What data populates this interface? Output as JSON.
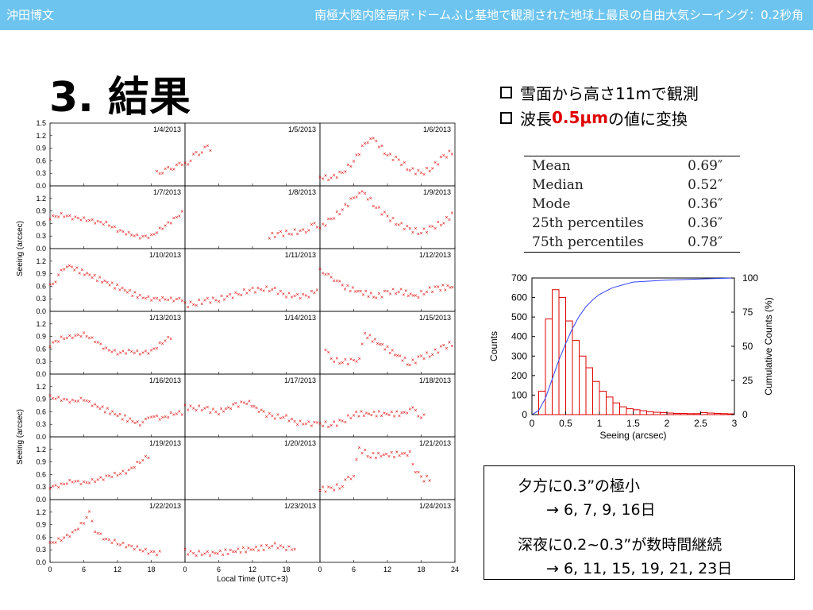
{
  "header": {
    "author": "沖田博文",
    "title": "南極大陸内陸高原･ドームふじ基地で観測された地球上最良の自由大気シーイング：0.2秒角"
  },
  "slide_title": "3. 結果",
  "bullets": [
    {
      "pre": "雪面から高さ11mで観測",
      "red": "",
      "post": ""
    },
    {
      "pre": "波長",
      "red": "0.5μm",
      "post": "の値に変換"
    }
  ],
  "stats": [
    {
      "label": "Mean",
      "value": "0.69″"
    },
    {
      "label": "Median",
      "value": "0.52″"
    },
    {
      "label": "Mode",
      "value": "0.36″"
    },
    {
      "label": "25th percentiles",
      "value": "0.36″"
    },
    {
      "label": "75th percentiles",
      "value": "0.78″"
    }
  ],
  "notes": [
    "夕方に0.3”の極小",
    "→ 6, 7, 9, 16日",
    "深夜に0.2~0.3”が数時間継続",
    "→ 6, 11, 15, 19, 21, 23日"
  ],
  "colors": {
    "header": "#6cc4ef",
    "points": "#e00000",
    "hist": "#e00000",
    "cum": "#3344ff"
  },
  "chart_data": [
    {
      "type": "scatter",
      "panels": [
        "1/4/2013",
        "1/5/2013",
        "1/6/2013",
        "1/7/2013",
        "1/8/2013",
        "1/9/2013",
        "1/10/2013",
        "1/11/2013",
        "1/12/2013",
        "1/13/2013",
        "1/14/2013",
        "1/15/2013",
        "1/16/2013",
        "1/17/2013",
        "1/18/2013",
        "1/19/2013",
        "1/20/2013",
        "1/21/2013",
        "1/22/2013",
        "1/23/2013",
        "1/24/2013"
      ],
      "xlabel": "Local Time (UTC+3)",
      "ylabel": "Seeing (arcsec)",
      "xticks": [
        "0",
        "6",
        "12",
        "18",
        "24"
      ],
      "yticks_first_row": [
        "0.0",
        "0.3",
        "0.6",
        "0.9",
        "1.2",
        "1.5"
      ],
      "yticks_other_rows": [
        "0.0",
        "0.3",
        "0.6",
        "0.9",
        "1.2"
      ],
      "ylim": [
        0,
        1.5
      ],
      "xlim": [
        0,
        24
      ],
      "daily_series": [
        [
          [
            19,
            0.3
          ],
          [
            20,
            0.35
          ],
          [
            21,
            0.4
          ],
          [
            22,
            0.45
          ],
          [
            23,
            0.5
          ],
          [
            24,
            0.55
          ]
        ],
        [
          [
            0,
            0.5
          ],
          [
            1,
            0.65
          ],
          [
            2,
            0.75
          ],
          [
            3,
            0.85
          ],
          [
            4,
            0.9
          ],
          [
            5,
            0.9
          ]
        ],
        [
          [
            0,
            0.2
          ],
          [
            2,
            0.2
          ],
          [
            4,
            0.3
          ],
          [
            6,
            0.6
          ],
          [
            8,
            1.0
          ],
          [
            9,
            1.15
          ],
          [
            10,
            1.05
          ],
          [
            12,
            0.75
          ],
          [
            14,
            0.6
          ],
          [
            16,
            0.4
          ],
          [
            18,
            0.28
          ],
          [
            20,
            0.45
          ],
          [
            22,
            0.7
          ],
          [
            24,
            0.85
          ]
        ],
        [
          [
            0,
            0.75
          ],
          [
            2,
            0.8
          ],
          [
            4,
            0.75
          ],
          [
            6,
            0.7
          ],
          [
            8,
            0.65
          ],
          [
            10,
            0.6
          ],
          [
            12,
            0.45
          ],
          [
            14,
            0.35
          ],
          [
            16,
            0.28
          ],
          [
            18,
            0.3
          ],
          [
            20,
            0.5
          ],
          [
            22,
            0.7
          ],
          [
            24,
            0.9
          ]
        ],
        [
          [
            15,
            0.3
          ],
          [
            17,
            0.35
          ],
          [
            19,
            0.4
          ],
          [
            21,
            0.4
          ],
          [
            22,
            0.5
          ],
          [
            23,
            0.55
          ],
          [
            24,
            0.6
          ]
        ],
        [
          [
            0,
            0.5
          ],
          [
            2,
            0.7
          ],
          [
            4,
            0.95
          ],
          [
            6,
            1.2
          ],
          [
            7,
            1.35
          ],
          [
            8,
            1.3
          ],
          [
            10,
            1.0
          ],
          [
            12,
            0.75
          ],
          [
            14,
            0.6
          ],
          [
            16,
            0.45
          ],
          [
            18,
            0.4
          ],
          [
            20,
            0.5
          ],
          [
            22,
            0.65
          ],
          [
            24,
            0.85
          ]
        ],
        [
          [
            0,
            0.6
          ],
          [
            1,
            0.75
          ],
          [
            2,
            0.95
          ],
          [
            3,
            1.1
          ],
          [
            16,
            0.35
          ],
          [
            18,
            0.3
          ],
          [
            20,
            0.3
          ],
          [
            22,
            0.28
          ],
          [
            24,
            0.3
          ]
        ],
        [
          [
            0,
            0.15
          ],
          [
            2,
            0.2
          ],
          [
            4,
            0.25
          ],
          [
            6,
            0.3
          ],
          [
            8,
            0.35
          ],
          [
            10,
            0.45
          ],
          [
            12,
            0.5
          ],
          [
            14,
            0.55
          ],
          [
            16,
            0.5
          ],
          [
            18,
            0.4
          ],
          [
            20,
            0.35
          ],
          [
            22,
            0.4
          ],
          [
            24,
            0.55
          ]
        ],
        [
          [
            0,
            1.0
          ],
          [
            1,
            0.9
          ],
          [
            2,
            0.8
          ],
          [
            3,
            0.75
          ],
          [
            4,
            0.6
          ],
          [
            10,
            0.35
          ],
          [
            12,
            0.45
          ],
          [
            14,
            0.5
          ],
          [
            17,
            0.35
          ],
          [
            19,
            0.5
          ],
          [
            21,
            0.55
          ],
          [
            24,
            0.6
          ]
        ],
        [
          [
            0,
            0.7
          ],
          [
            2,
            0.85
          ],
          [
            4,
            0.9
          ],
          [
            6,
            0.95
          ],
          [
            8,
            0.8
          ],
          [
            10,
            0.6
          ],
          [
            12,
            0.5
          ],
          [
            14,
            0.55
          ],
          [
            16,
            0.5
          ],
          [
            18,
            0.55
          ],
          [
            20,
            0.75
          ],
          [
            22,
            0.95
          ]
        ],
        [],
        [
          [
            1,
            0.6
          ],
          [
            2,
            0.35
          ],
          [
            4,
            0.3
          ],
          [
            6,
            0.3
          ],
          [
            7,
            0.4
          ],
          [
            8,
            0.95
          ],
          [
            16,
            0.25
          ],
          [
            18,
            0.4
          ],
          [
            20,
            0.5
          ],
          [
            22,
            0.65
          ],
          [
            24,
            0.75
          ]
        ],
        [
          [
            0,
            0.95
          ],
          [
            2,
            0.9
          ],
          [
            4,
            0.85
          ],
          [
            6,
            0.9
          ],
          [
            8,
            0.75
          ],
          [
            16,
            0.3
          ],
          [
            17,
            0.4
          ],
          [
            18,
            0.5
          ],
          [
            20,
            0.45
          ],
          [
            22,
            0.55
          ],
          [
            24,
            0.6
          ]
        ],
        [
          [
            0,
            0.7
          ],
          [
            2,
            0.7
          ],
          [
            4,
            0.65
          ],
          [
            6,
            0.6
          ],
          [
            9,
            0.75
          ],
          [
            11,
            0.85
          ],
          [
            14,
            0.55
          ],
          [
            16,
            0.5
          ],
          [
            18,
            0.45
          ],
          [
            20,
            0.35
          ],
          [
            22,
            0.3
          ],
          [
            24,
            0.35
          ]
        ],
        [
          [
            0,
            0.3
          ],
          [
            2,
            0.3
          ],
          [
            4,
            0.35
          ],
          [
            6,
            0.55
          ],
          [
            15,
            0.55
          ],
          [
            16,
            0.7
          ],
          [
            17,
            0.6
          ],
          [
            18,
            0.5
          ],
          [
            19,
            0.45
          ]
        ],
        [
          [
            0,
            0.3
          ],
          [
            2,
            0.35
          ],
          [
            4,
            0.45
          ],
          [
            6,
            0.4
          ],
          [
            8,
            0.45
          ],
          [
            10,
            0.55
          ],
          [
            12,
            0.6
          ],
          [
            14,
            0.7
          ],
          [
            16,
            0.9
          ],
          [
            18,
            1.1
          ]
        ],
        [],
        [
          [
            0,
            0.25
          ],
          [
            2,
            0.25
          ],
          [
            4,
            0.35
          ],
          [
            5,
            0.5
          ],
          [
            6,
            0.6
          ],
          [
            7,
            1.2
          ],
          [
            9,
            1.05
          ],
          [
            16,
            1.1
          ],
          [
            17,
            0.7
          ],
          [
            18,
            0.5
          ],
          [
            20,
            0.5
          ]
        ],
        [
          [
            0,
            0.45
          ],
          [
            2,
            0.55
          ],
          [
            4,
            0.7
          ],
          [
            6,
            0.95
          ],
          [
            7,
            1.2
          ],
          [
            8,
            0.75
          ],
          [
            10,
            0.55
          ],
          [
            12,
            0.45
          ],
          [
            14,
            0.4
          ],
          [
            16,
            0.3
          ],
          [
            18,
            0.25
          ],
          [
            20,
            0.2
          ]
        ],
        [
          [
            0,
            0.25
          ],
          [
            2,
            0.22
          ],
          [
            4,
            0.2
          ],
          [
            14,
            0.35
          ],
          [
            16,
            0.4
          ],
          [
            18,
            0.35
          ],
          [
            20,
            0.3
          ]
        ],
        []
      ]
    },
    {
      "type": "bar",
      "xlabel": "Seeing (arcsec)",
      "ylabel": "Counts",
      "y2label": "Cumulative Counts (%)",
      "xlim": [
        0,
        3
      ],
      "ylim": [
        0,
        700
      ],
      "y2lim": [
        0,
        100
      ],
      "xticks": [
        "0",
        "0.5",
        "1",
        "1.5",
        "2",
        "2.5",
        "3"
      ],
      "yticks": [
        "0",
        "100",
        "200",
        "300",
        "400",
        "500",
        "600",
        "700"
      ],
      "y2ticks": [
        "0",
        "25",
        "50",
        "75",
        "100"
      ],
      "bin_width": 0.1,
      "bin_starts": [
        0.1,
        0.2,
        0.3,
        0.4,
        0.5,
        0.6,
        0.7,
        0.8,
        0.9,
        1.0,
        1.1,
        1.2,
        1.3,
        1.4,
        1.5,
        1.6,
        1.7,
        1.8,
        1.9,
        2.0,
        2.1,
        2.2,
        2.3,
        2.4,
        2.5,
        2.6,
        2.7,
        2.8,
        2.9
      ],
      "counts": [
        120,
        490,
        640,
        600,
        480,
        380,
        300,
        240,
        170,
        120,
        90,
        60,
        40,
        30,
        25,
        20,
        15,
        12,
        10,
        8,
        6,
        6,
        5,
        5,
        10,
        8,
        6,
        5,
        4
      ],
      "cumulative": {
        "x": [
          0,
          0.1,
          0.2,
          0.3,
          0.4,
          0.5,
          0.6,
          0.7,
          0.8,
          0.9,
          1.0,
          1.2,
          1.5,
          2.0,
          2.5,
          3.0
        ],
        "y": [
          0,
          3,
          12,
          26,
          40,
          52,
          63,
          72,
          79,
          84,
          88,
          93,
          97,
          98.5,
          99.3,
          100
        ]
      }
    }
  ]
}
